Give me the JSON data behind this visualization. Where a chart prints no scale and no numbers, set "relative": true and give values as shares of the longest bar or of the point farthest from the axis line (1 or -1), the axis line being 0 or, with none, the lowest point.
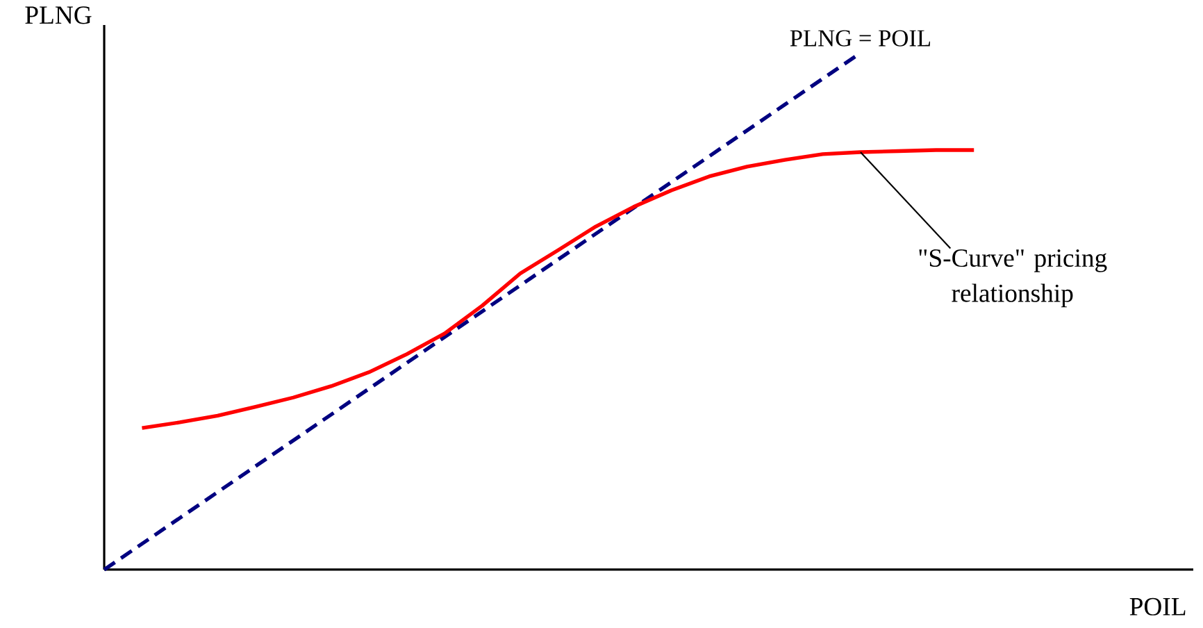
{
  "chart_data": {
    "type": "line",
    "relative": true,
    "xlabel": "POIL",
    "ylabel": "PLNG",
    "categories": [
      null,
      null,
      null,
      null,
      null,
      null,
      null,
      null,
      null,
      null,
      null,
      null,
      null,
      null,
      null,
      null,
      null,
      null,
      null,
      null,
      null,
      null,
      null,
      null,
      null,
      null,
      null,
      null,
      null
    ],
    "series": [
      {
        "name": "PLNG = POIL",
        "color": "#000080",
        "line_style": "dashed",
        "values": [
          0,
          0.05,
          0.1,
          0.15,
          0.2,
          0.25,
          0.3,
          0.35,
          0.4,
          0.45,
          0.5,
          0.55,
          0.6,
          0.65,
          0.7,
          0.75,
          0.8,
          0.85,
          0.9,
          0.95,
          1,
          null,
          null,
          null,
          null,
          null,
          null,
          null,
          null
        ]
      },
      {
        "color": "#ff0000",
        "line_style": "solid",
        "values": [
          null,
          0.274,
          0.285,
          0.298,
          0.315,
          0.333,
          0.355,
          0.382,
          0.417,
          0.457,
          0.511,
          0.573,
          0.618,
          0.664,
          0.702,
          0.734,
          0.761,
          0.78,
          0.793,
          0.804,
          0.808,
          0.81,
          0.812,
          0.812,
          null,
          null,
          null,
          null,
          null
        ]
      }
    ],
    "annotations": [
      "\"S-Curve\" pricing relationship"
    ],
    "legend": false
  }
}
